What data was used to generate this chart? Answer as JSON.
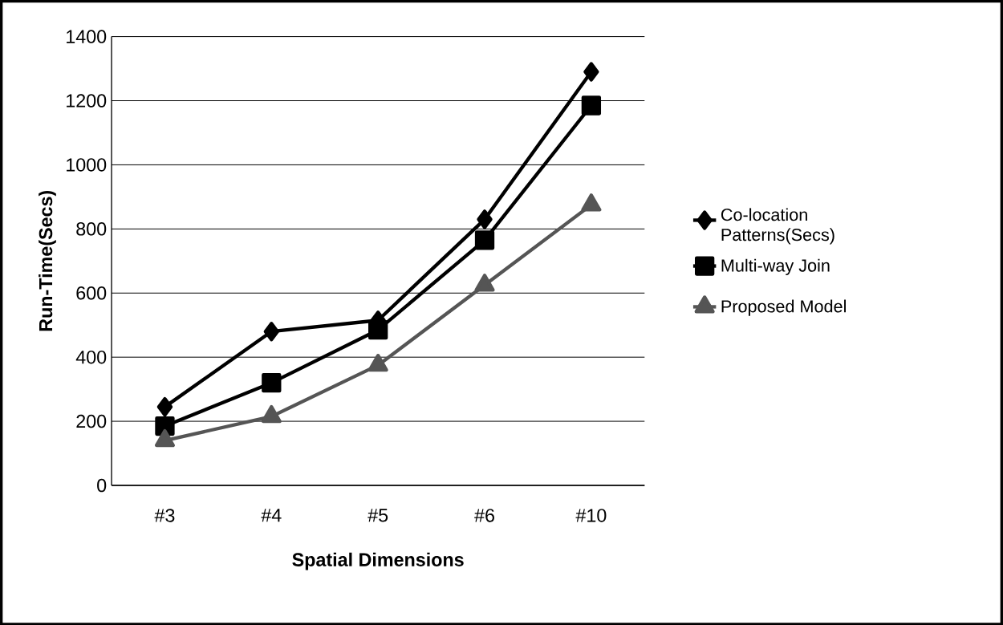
{
  "chart_data": {
    "type": "line",
    "xlabel": "Spatial Dimensions",
    "ylabel": "Run-Time(Secs)",
    "categories": [
      "#3",
      "#4",
      "#5",
      "#6",
      "#10"
    ],
    "series": [
      {
        "name": "Co-location Patterns(Secs)",
        "color": "#000000",
        "marker": "diamond",
        "values": [
          245,
          480,
          515,
          830,
          1290
        ]
      },
      {
        "name": "Multi-way Join",
        "color": "#000000",
        "marker": "square",
        "values": [
          185,
          320,
          485,
          765,
          1185
        ]
      },
      {
        "name": "Proposed Model",
        "color": "#555555",
        "marker": "triangle",
        "values": [
          140,
          215,
          375,
          625,
          875
        ]
      }
    ],
    "ylim": [
      0,
      1400
    ],
    "yticks": [
      0,
      200,
      400,
      600,
      800,
      1000,
      1200,
      1400
    ],
    "grid": "y",
    "legend": "right",
    "line_style": "solid"
  }
}
